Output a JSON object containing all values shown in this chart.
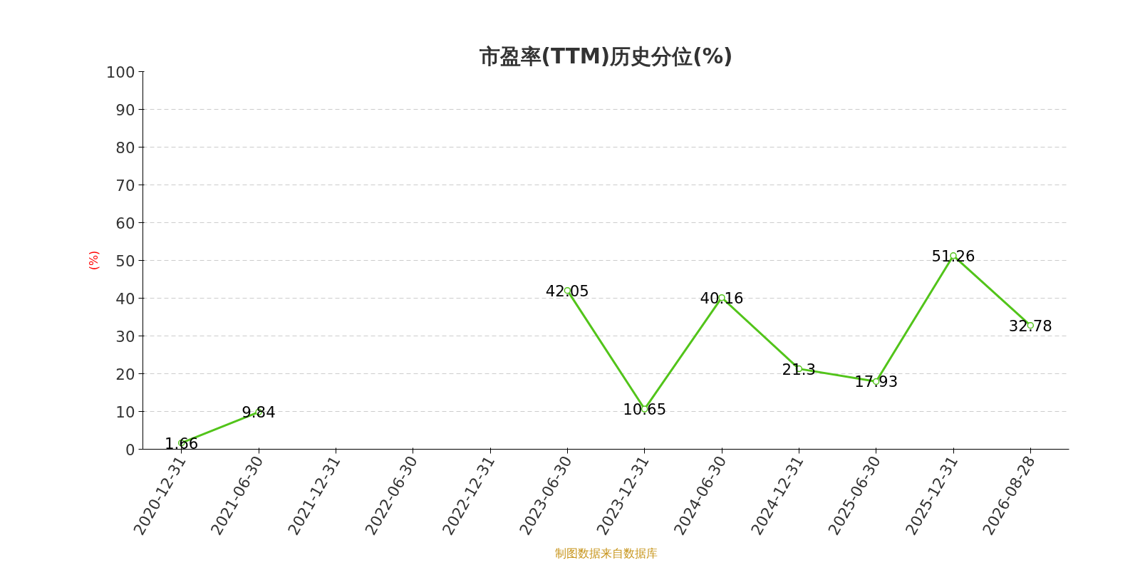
{
  "chart_data": {
    "type": "line",
    "title": "市盈率(TTM)历史分位(%)",
    "ylabel": "(%)",
    "categories": [
      "2020-12-31",
      "2021-06-30",
      "2021-12-31",
      "2022-06-30",
      "2022-12-31",
      "2023-06-30",
      "2023-12-31",
      "2024-06-30",
      "2024-12-31",
      "2025-06-30",
      "2025-12-31",
      "2026-08-28"
    ],
    "series": [
      {
        "color": "#52c41a",
        "values": [
          1.66,
          9.84,
          null,
          null,
          null,
          42.05,
          10.65,
          40.16,
          21.3,
          17.93,
          51.26,
          32.78
        ]
      }
    ],
    "ylim": [
      0,
      100
    ],
    "yticks": [
      0,
      10,
      20,
      30,
      40,
      50,
      60,
      70,
      80,
      90,
      100
    ],
    "grid": "y",
    "marker": "circle",
    "line_style": "solid",
    "data_labels": true,
    "annotations": [
      "制图数据来自数据库"
    ]
  }
}
